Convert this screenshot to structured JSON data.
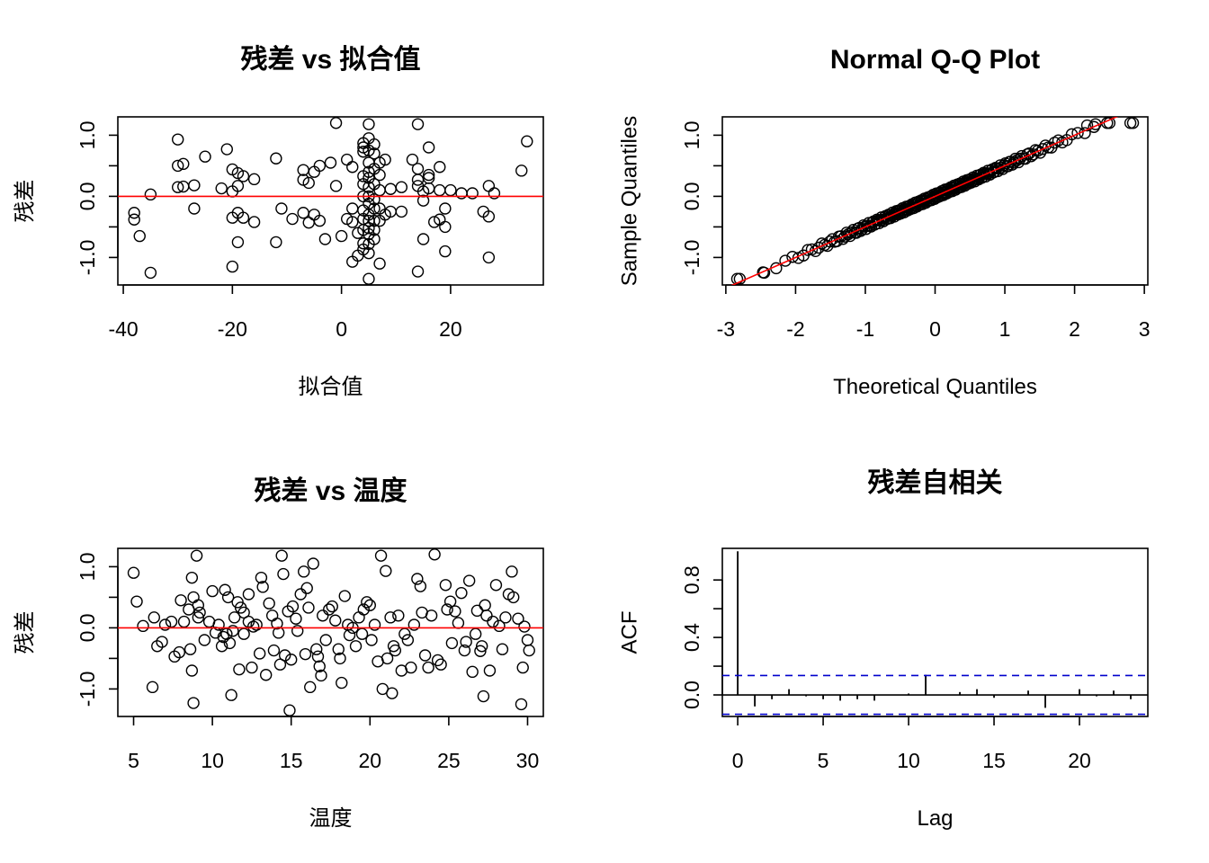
{
  "chart_data": [
    {
      "type": "scatter",
      "title": "残差 vs 拟合值",
      "xlabel": "拟合值",
      "ylabel": "残差",
      "xlim": [
        -41,
        37
      ],
      "ylim": [
        -1.45,
        1.3
      ],
      "xticks": [
        -40,
        -20,
        0,
        20
      ],
      "yticks": [
        -1.0,
        -0.5,
        0.0,
        0.5,
        1.0
      ],
      "ytick_labels": [
        "-1.0",
        "",
        "0.0",
        "",
        "1.0"
      ],
      "hline": 0,
      "hline_color": "#ff0000",
      "points": [
        [
          -30,
          0.93
        ],
        [
          -30,
          0.5
        ],
        [
          -29,
          0.53
        ],
        [
          -30,
          0.15
        ],
        [
          -29,
          0.16
        ],
        [
          -25,
          0.65
        ],
        [
          -27,
          0.18
        ],
        [
          -27,
          -0.2
        ],
        [
          -38,
          -0.27
        ],
        [
          -38,
          -0.38
        ],
        [
          -37,
          -0.65
        ],
        [
          -35,
          0.03
        ],
        [
          -35,
          -1.25
        ],
        [
          -21,
          0.77
        ],
        [
          -20,
          0.44
        ],
        [
          -19,
          0.38
        ],
        [
          -18,
          0.33
        ],
        [
          -19,
          0.17
        ],
        [
          -20,
          0.08
        ],
        [
          -22,
          0.13
        ],
        [
          -16,
          0.28
        ],
        [
          -12,
          0.62
        ],
        [
          -19,
          -0.27
        ],
        [
          -20,
          -0.35
        ],
        [
          -18,
          -0.35
        ],
        [
          -16,
          -0.42
        ],
        [
          -19,
          -0.75
        ],
        [
          -20,
          -1.15
        ],
        [
          -12,
          -0.75
        ],
        [
          -11,
          -0.2
        ],
        [
          -9,
          -0.37
        ],
        [
          -7,
          -0.27
        ],
        [
          -7,
          0.27
        ],
        [
          -6,
          0.22
        ],
        [
          -7,
          0.43
        ],
        [
          -5,
          0.4
        ],
        [
          -4,
          0.5
        ],
        [
          -6,
          -0.43
        ],
        [
          -5,
          -0.3
        ],
        [
          -4,
          -0.4
        ],
        [
          -3,
          -0.7
        ],
        [
          -1,
          0.17
        ],
        [
          -2,
          0.55
        ],
        [
          -1,
          1.2
        ],
        [
          0,
          -0.65
        ],
        [
          1,
          0.6
        ],
        [
          2,
          0.48
        ],
        [
          2,
          -0.2
        ],
        [
          1,
          -0.37
        ],
        [
          2,
          -0.42
        ],
        [
          3,
          -0.6
        ],
        [
          2,
          -1.07
        ],
        [
          3,
          -0.97
        ],
        [
          4,
          0.8
        ],
        [
          4,
          0.73
        ],
        [
          4,
          0.87
        ],
        [
          4,
          0.2
        ],
        [
          4,
          0.33
        ],
        [
          4,
          0.0
        ],
        [
          4,
          -0.23
        ],
        [
          4,
          -0.37
        ],
        [
          4,
          -0.55
        ],
        [
          4,
          -0.77
        ],
        [
          4,
          -0.87
        ],
        [
          5,
          1.18
        ],
        [
          5,
          0.95
        ],
        [
          5,
          0.75
        ],
        [
          5,
          0.55
        ],
        [
          5,
          0.4
        ],
        [
          5,
          0.3
        ],
        [
          5,
          0.15
        ],
        [
          5,
          0.0
        ],
        [
          5,
          -0.12
        ],
        [
          5,
          -0.3
        ],
        [
          5,
          -0.4
        ],
        [
          5,
          -0.52
        ],
        [
          5,
          -0.62
        ],
        [
          5,
          -0.78
        ],
        [
          5,
          -0.93
        ],
        [
          5,
          -1.35
        ],
        [
          6,
          0.85
        ],
        [
          6,
          0.7
        ],
        [
          6,
          0.45
        ],
        [
          6,
          0.2
        ],
        [
          6,
          -0.05
        ],
        [
          6,
          -0.2
        ],
        [
          6,
          -0.4
        ],
        [
          6,
          -0.55
        ],
        [
          6,
          -0.7
        ],
        [
          7,
          0.55
        ],
        [
          7,
          0.35
        ],
        [
          7,
          0.1
        ],
        [
          7,
          -0.2
        ],
        [
          7,
          -0.4
        ],
        [
          7,
          -1.1
        ],
        [
          8,
          0.6
        ],
        [
          8,
          -0.3
        ],
        [
          9,
          0.12
        ],
        [
          9,
          -0.25
        ],
        [
          11,
          0.15
        ],
        [
          11,
          -0.25
        ],
        [
          13,
          0.6
        ],
        [
          14,
          0.45
        ],
        [
          14,
          0.27
        ],
        [
          14,
          0.17
        ],
        [
          14,
          1.18
        ],
        [
          15,
          0.08
        ],
        [
          15,
          -0.07
        ],
        [
          16,
          0.35
        ],
        [
          16,
          0.13
        ],
        [
          15,
          -0.7
        ],
        [
          14,
          -1.23
        ],
        [
          16,
          0.8
        ],
        [
          16,
          0.3
        ],
        [
          18,
          0.48
        ],
        [
          18,
          0.1
        ],
        [
          17,
          -0.42
        ],
        [
          18,
          -0.38
        ],
        [
          19,
          -0.2
        ],
        [
          19,
          -0.5
        ],
        [
          19,
          -0.9
        ],
        [
          20,
          0.1
        ],
        [
          22,
          0.05
        ],
        [
          24,
          0.05
        ],
        [
          26,
          -0.25
        ],
        [
          27,
          0.17
        ],
        [
          27,
          -0.33
        ],
        [
          27,
          -1.0
        ],
        [
          28,
          0.05
        ],
        [
          33,
          0.42
        ],
        [
          34,
          0.9
        ]
      ]
    },
    {
      "type": "scatter",
      "title": "Normal Q-Q Plot",
      "xlabel": "Theoretical Quantiles",
      "ylabel": "Sample Quantiles",
      "xlim": [
        -3.05,
        3.05
      ],
      "ylim": [
        -1.45,
        1.3
      ],
      "xticks": [
        -3,
        -2,
        -1,
        0,
        1,
        2,
        3
      ],
      "yticks": [
        -1.0,
        -0.5,
        0.0,
        0.5,
        1.0
      ],
      "ytick_labels": [
        "-1.0",
        "",
        "0.0",
        "",
        "1.0"
      ],
      "n_points": 220,
      "point_range": [
        -1.35,
        1.2
      ],
      "extra_points": [
        [
          -2.8,
          -1.35
        ],
        [
          2.8,
          1.2
        ],
        [
          2.5,
          1.2
        ],
        [
          2.3,
          1.18
        ],
        [
          2.18,
          1.16
        ],
        [
          -2.45,
          -1.25
        ]
      ],
      "qq_line": {
        "slope": 0.5,
        "intercept": 0.0,
        "color": "#ff0000"
      }
    },
    {
      "type": "scatter",
      "title": "残差 vs 温度",
      "xlabel": "温度",
      "ylabel": "残差",
      "xlim": [
        4.0,
        31.0
      ],
      "ylim": [
        -1.45,
        1.3
      ],
      "xticks": [
        5,
        10,
        15,
        20,
        25,
        30
      ],
      "yticks": [
        -1.0,
        -0.5,
        0.0,
        0.5,
        1.0
      ],
      "ytick_labels": [
        "-1.0",
        "",
        "0.0",
        "",
        "1.0"
      ],
      "hline": 0,
      "hline_color": "#ff0000",
      "points": [
        [
          5.0,
          0.9
        ],
        [
          5.2,
          0.43
        ],
        [
          5.6,
          0.03
        ],
        [
          6.2,
          -0.97
        ],
        [
          6.3,
          0.17
        ],
        [
          6.5,
          -0.3
        ],
        [
          6.8,
          -0.23
        ],
        [
          7.0,
          0.05
        ],
        [
          7.4,
          0.1
        ],
        [
          7.6,
          -0.47
        ],
        [
          7.9,
          -0.4
        ],
        [
          8.0,
          0.45
        ],
        [
          8.2,
          0.1
        ],
        [
          8.5,
          0.3
        ],
        [
          8.6,
          -0.35
        ],
        [
          8.7,
          -0.7
        ],
        [
          8.7,
          0.82
        ],
        [
          8.8,
          0.5
        ],
        [
          8.8,
          -1.23
        ],
        [
          9.0,
          1.18
        ],
        [
          9.1,
          0.37
        ],
        [
          9.1,
          0.17
        ],
        [
          9.2,
          0.25
        ],
        [
          9.5,
          -0.2
        ],
        [
          9.8,
          0.1
        ],
        [
          10.0,
          0.6
        ],
        [
          10.2,
          -0.08
        ],
        [
          10.4,
          0.05
        ],
        [
          10.6,
          -0.3
        ],
        [
          10.7,
          -0.15
        ],
        [
          10.8,
          0.62
        ],
        [
          10.9,
          -0.1
        ],
        [
          11.0,
          0.5
        ],
        [
          11.1,
          -0.25
        ],
        [
          11.2,
          -1.1
        ],
        [
          11.3,
          -0.05
        ],
        [
          11.4,
          0.17
        ],
        [
          11.6,
          0.42
        ],
        [
          11.7,
          -0.68
        ],
        [
          11.8,
          0.33
        ],
        [
          12.0,
          0.25
        ],
        [
          12.0,
          -0.1
        ],
        [
          12.3,
          0.1
        ],
        [
          12.3,
          0.55
        ],
        [
          12.5,
          -0.65
        ],
        [
          12.6,
          0.02
        ],
        [
          12.8,
          0.05
        ],
        [
          13.0,
          -0.42
        ],
        [
          13.1,
          0.82
        ],
        [
          13.2,
          0.67
        ],
        [
          13.4,
          -0.77
        ],
        [
          13.6,
          0.4
        ],
        [
          13.8,
          0.2
        ],
        [
          13.9,
          -0.37
        ],
        [
          14.1,
          0.07
        ],
        [
          14.2,
          -0.08
        ],
        [
          14.3,
          -0.6
        ],
        [
          14.4,
          1.18
        ],
        [
          14.5,
          0.88
        ],
        [
          14.6,
          -0.45
        ],
        [
          14.8,
          0.27
        ],
        [
          14.9,
          -1.35
        ],
        [
          15.0,
          -0.52
        ],
        [
          15.1,
          0.35
        ],
        [
          15.3,
          0.15
        ],
        [
          15.4,
          -0.05
        ],
        [
          15.6,
          0.55
        ],
        [
          15.8,
          0.92
        ],
        [
          15.9,
          -0.43
        ],
        [
          16.0,
          0.65
        ],
        [
          16.1,
          0.33
        ],
        [
          16.2,
          -0.97
        ],
        [
          16.4,
          1.05
        ],
        [
          16.6,
          -0.35
        ],
        [
          16.7,
          -0.47
        ],
        [
          16.8,
          -0.63
        ],
        [
          16.9,
          -0.78
        ],
        [
          17.0,
          0.2
        ],
        [
          17.2,
          -0.2
        ],
        [
          17.4,
          0.3
        ],
        [
          17.6,
          0.35
        ],
        [
          17.8,
          0.12
        ],
        [
          18.0,
          -0.35
        ],
        [
          18.1,
          -0.5
        ],
        [
          18.2,
          -0.9
        ],
        [
          18.4,
          0.52
        ],
        [
          18.6,
          0.05
        ],
        [
          18.7,
          -0.12
        ],
        [
          18.9,
          0.0
        ],
        [
          19.1,
          -0.3
        ],
        [
          19.3,
          0.17
        ],
        [
          19.5,
          -0.1
        ],
        [
          19.6,
          0.3
        ],
        [
          19.8,
          0.42
        ],
        [
          20.0,
          0.37
        ],
        [
          20.1,
          -0.2
        ],
        [
          20.3,
          0.05
        ],
        [
          20.5,
          -0.55
        ],
        [
          20.7,
          1.18
        ],
        [
          20.8,
          -1.0
        ],
        [
          21.0,
          0.93
        ],
        [
          21.1,
          -0.5
        ],
        [
          21.3,
          0.17
        ],
        [
          21.4,
          -1.07
        ],
        [
          21.5,
          -0.3
        ],
        [
          21.6,
          -0.37
        ],
        [
          21.8,
          0.2
        ],
        [
          22.0,
          -0.7
        ],
        [
          22.2,
          -0.1
        ],
        [
          22.4,
          -0.2
        ],
        [
          22.6,
          -0.65
        ],
        [
          22.8,
          0.05
        ],
        [
          23.0,
          0.8
        ],
        [
          23.2,
          0.68
        ],
        [
          23.3,
          0.25
        ],
        [
          23.5,
          -0.45
        ],
        [
          23.7,
          -0.65
        ],
        [
          23.9,
          0.2
        ],
        [
          24.1,
          1.2
        ],
        [
          24.3,
          -0.53
        ],
        [
          24.5,
          -0.6
        ],
        [
          24.8,
          0.7
        ],
        [
          24.9,
          0.3
        ],
        [
          25.1,
          0.43
        ],
        [
          25.2,
          -0.25
        ],
        [
          25.4,
          0.27
        ],
        [
          25.6,
          0.08
        ],
        [
          25.8,
          0.57
        ],
        [
          26.0,
          -0.37
        ],
        [
          26.1,
          -0.23
        ],
        [
          26.3,
          0.77
        ],
        [
          26.5,
          -0.72
        ],
        [
          26.7,
          -0.1
        ],
        [
          26.8,
          0.28
        ],
        [
          27.0,
          -0.38
        ],
        [
          27.1,
          -0.3
        ],
        [
          27.2,
          -1.12
        ],
        [
          27.3,
          0.37
        ],
        [
          27.4,
          0.2
        ],
        [
          27.6,
          -0.7
        ],
        [
          27.8,
          0.1
        ],
        [
          28.0,
          0.7
        ],
        [
          28.2,
          0.03
        ],
        [
          28.4,
          -0.35
        ],
        [
          28.6,
          0.17
        ],
        [
          28.8,
          0.55
        ],
        [
          29.0,
          0.92
        ],
        [
          29.1,
          0.5
        ],
        [
          29.4,
          0.15
        ],
        [
          29.6,
          -1.25
        ],
        [
          29.7,
          -0.65
        ],
        [
          29.8,
          0.02
        ],
        [
          30.0,
          -0.2
        ],
        [
          30.1,
          -0.37
        ]
      ]
    },
    {
      "type": "bar",
      "title": "残差自相关",
      "xlabel": "Lag",
      "ylabel": "ACF",
      "xlim": [
        -0.9,
        24
      ],
      "ylim": [
        -0.15,
        1.02
      ],
      "xticks": [
        0,
        5,
        10,
        15,
        20
      ],
      "yticks": [
        0.0,
        0.2,
        0.4,
        0.6,
        0.8
      ],
      "ytick_labels": [
        "0.0",
        "",
        "0.4",
        "",
        "0.8"
      ],
      "lags": [
        0,
        1,
        2,
        3,
        4,
        5,
        6,
        7,
        8,
        9,
        10,
        11,
        12,
        13,
        14,
        15,
        16,
        17,
        18,
        19,
        20,
        21,
        22,
        23
      ],
      "acf": [
        1.0,
        -0.08,
        -0.03,
        0.04,
        -0.01,
        -0.03,
        -0.04,
        -0.03,
        -0.04,
        0.0,
        0.01,
        0.14,
        0.0,
        0.02,
        0.04,
        -0.02,
        0.0,
        0.03,
        -0.09,
        0.0,
        0.04,
        -0.01,
        0.03,
        -0.03
      ],
      "conf_bound": 0.135,
      "conf_color": "#0000cc"
    }
  ]
}
